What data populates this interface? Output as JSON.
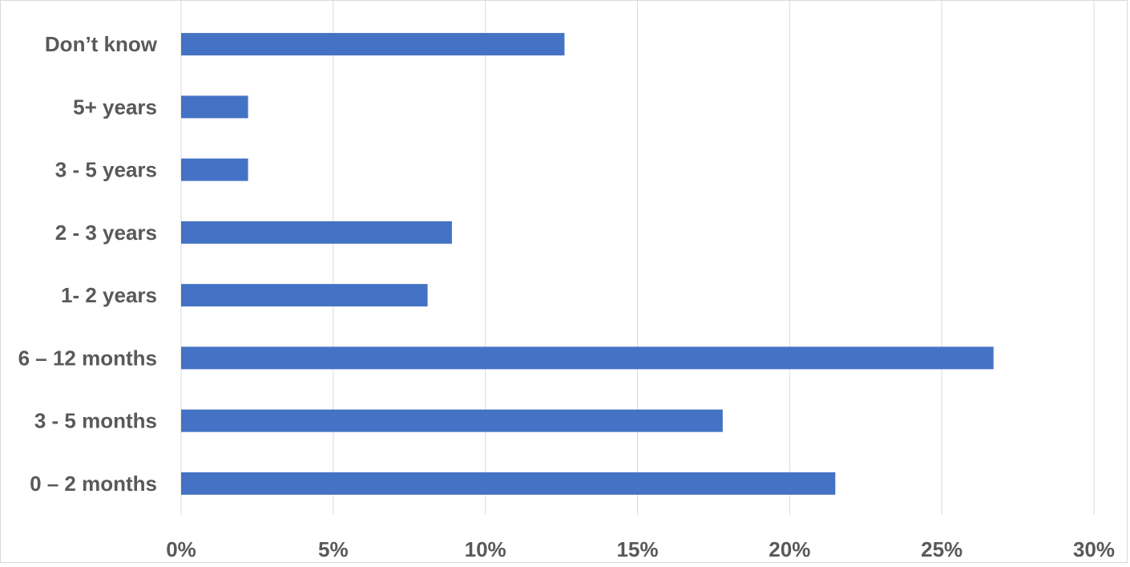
{
  "chart_data": {
    "type": "bar",
    "orientation": "horizontal",
    "categories": [
      "Don’t know",
      "5+ years",
      "3 - 5 years",
      "2 - 3 years",
      "1- 2 years",
      "6 – 12 months",
      "3 - 5 months",
      "0 – 2 months"
    ],
    "values": [
      12.6,
      2.2,
      2.2,
      8.9,
      8.1,
      26.7,
      17.8,
      21.5
    ],
    "value_unit": "%",
    "xlim": [
      0,
      30
    ],
    "x_ticks": [
      "0%",
      "5%",
      "10%",
      "15%",
      "20%",
      "25%",
      "30%"
    ],
    "x_tick_values": [
      0,
      5,
      10,
      15,
      20,
      25,
      30
    ],
    "title": "",
    "xlabel": "",
    "ylabel": "",
    "grid": "vertical",
    "legend": "none",
    "colors": {
      "bar": "#4472C4",
      "grid": "#D9D9D9",
      "text": "#595959"
    }
  }
}
